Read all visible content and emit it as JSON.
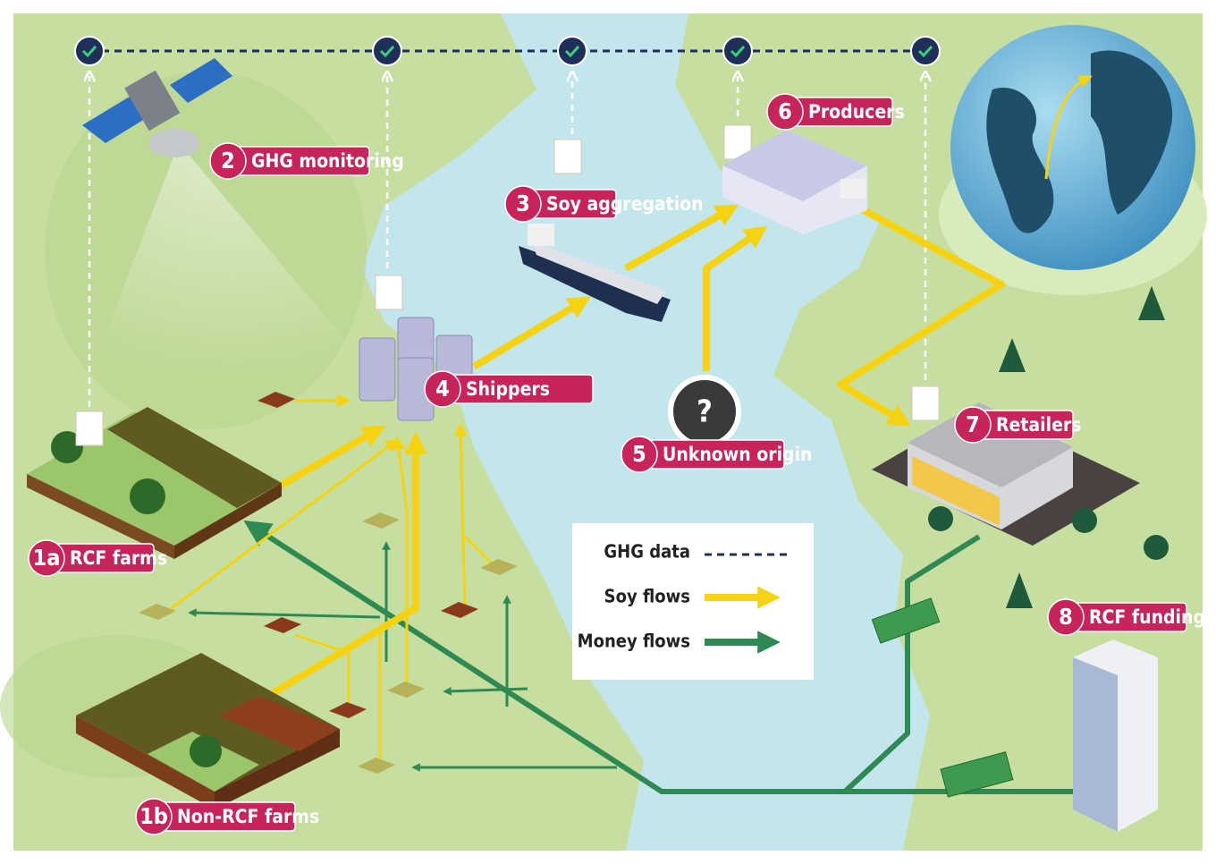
{
  "nodes": [
    {
      "number": "1a",
      "label": "RCF farms"
    },
    {
      "number": "1b",
      "label": "Non-RCF farms"
    },
    {
      "number": "2",
      "label": "GHG monitoring"
    },
    {
      "number": "3",
      "label": "Soy aggregation"
    },
    {
      "number": "4",
      "label": "Shippers"
    },
    {
      "number": "5",
      "label": "Unknown origin",
      "symbol": "?"
    },
    {
      "number": "6",
      "label": "Producers"
    },
    {
      "number": "7",
      "label": "Retailers"
    },
    {
      "number": "8",
      "label": "RCF funding"
    }
  ],
  "legend": [
    {
      "label": "GHG data"
    },
    {
      "label": "Soy flows"
    },
    {
      "label": "Money flows"
    }
  ]
}
